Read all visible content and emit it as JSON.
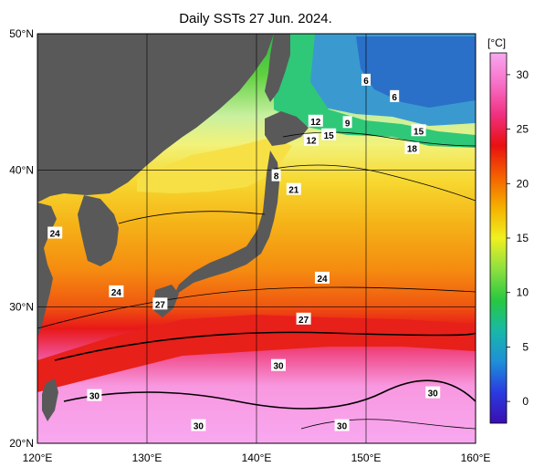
{
  "title": "Daily SSTs 27 Jun. 2024.",
  "colorbar": {
    "unit": "[°C]",
    "ticks": [
      "0",
      "5",
      "10",
      "15",
      "20",
      "25",
      "30"
    ],
    "range": [
      -2,
      32
    ],
    "stops": [
      "#3a0fb0",
      "#2a3ae0",
      "#1e90d8",
      "#18b8a8",
      "#28c840",
      "#8ee040",
      "#f0f020",
      "#f5b000",
      "#f56000",
      "#e81010",
      "#f03080",
      "#f870c8",
      "#f8a8f0"
    ]
  },
  "map": {
    "lon_range": [
      120,
      160
    ],
    "lat_range": [
      20,
      50
    ],
    "x_ticks": [
      "120°E",
      "130°E",
      "140°E",
      "150°E",
      "160°E"
    ],
    "y_ticks": [
      "20°N",
      "30°N",
      "40°N",
      "50°N"
    ],
    "land_color": "#595959"
  },
  "contour_labels": [
    {
      "text": "6",
      "lon": 150.0,
      "lat": 46.6
    },
    {
      "text": "6",
      "lon": 152.6,
      "lat": 45.4
    },
    {
      "text": "12",
      "lon": 145.4,
      "lat": 43.6
    },
    {
      "text": "9",
      "lon": 148.3,
      "lat": 43.5
    },
    {
      "text": "12",
      "lon": 145.0,
      "lat": 42.2
    },
    {
      "text": "15",
      "lon": 146.6,
      "lat": 42.6
    },
    {
      "text": "15",
      "lon": 154.8,
      "lat": 42.9
    },
    {
      "text": "18",
      "lon": 154.2,
      "lat": 41.6
    },
    {
      "text": "8",
      "lon": 141.8,
      "lat": 39.6
    },
    {
      "text": "21",
      "lon": 143.4,
      "lat": 38.6
    },
    {
      "text": "24",
      "lon": 121.6,
      "lat": 35.4
    },
    {
      "text": "24",
      "lon": 146.0,
      "lat": 32.1
    },
    {
      "text": "24",
      "lon": 127.2,
      "lat": 31.1
    },
    {
      "text": "27",
      "lon": 131.2,
      "lat": 30.2
    },
    {
      "text": "27",
      "lon": 144.3,
      "lat": 29.1
    },
    {
      "text": "30",
      "lon": 142.0,
      "lat": 25.7
    },
    {
      "text": "30",
      "lon": 125.2,
      "lat": 23.5
    },
    {
      "text": "30",
      "lon": 156.1,
      "lat": 23.7
    },
    {
      "text": "30",
      "lon": 134.7,
      "lat": 21.3
    },
    {
      "text": "30",
      "lon": 147.8,
      "lat": 21.3
    }
  ]
}
